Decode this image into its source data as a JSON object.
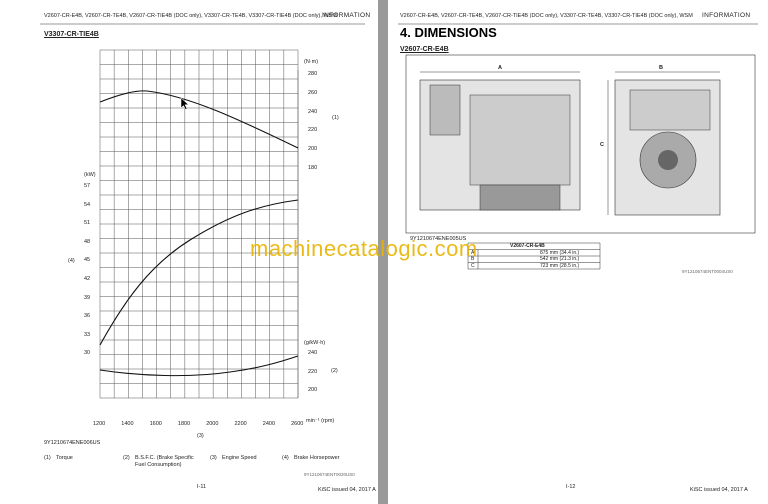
{
  "left_page": {
    "header": "V2607-CR-E4B, V2607-CR-TE4B, V2607-CR-TIE4B (DOC only), V3307-CR-TE4B, V3307-CR-TIE4B (DOC only), WSM",
    "section_label": "INFORMATION",
    "subtitle": "V3307-CR-TIE4B",
    "figure": {
      "torque_unit": "(N·m)",
      "torque_ticks": [
        280,
        260,
        240,
        220,
        200,
        180
      ],
      "torque_callout": "(1)",
      "power_unit": "(kW)",
      "power_ticks": [
        57,
        54,
        51,
        48,
        45,
        42,
        39,
        36,
        33,
        30
      ],
      "power_callout": "(4)",
      "bsfc_unit": "(g/kW·h)",
      "bsfc_ticks": [
        240,
        220,
        200
      ],
      "bsfc_callout": "(2)",
      "speed_ticks": [
        1200,
        1400,
        1600,
        1800,
        2000,
        2200,
        2400,
        2600
      ],
      "speed_unit": "min⁻¹ (rpm)",
      "speed_callout": "(3)",
      "figure_code": "9Y1210674ENE006US"
    },
    "legend": [
      {
        "number": "(1)",
        "label": "Torque"
      },
      {
        "number": "(2)",
        "label": "B.S.F.C. (Brake Specific Fuel Consumption)"
      },
      {
        "number": "(3)",
        "label": "Engine Speed"
      },
      {
        "number": "(4)",
        "label": "Brake Horsepower"
      }
    ],
    "text_code": "9Y1210674ENT0020US0",
    "page_number": "I-11",
    "footer": "KiSC issued 04, 2017 A"
  },
  "right_page": {
    "header": "V2607-CR-E4B, V2607-CR-TE4B, V2607-CR-TIE4B (DOC only), V3307-CR-TE4B, V3307-CR-TIE4B (DOC only), WSM",
    "section_label": "INFORMATION",
    "title": "4.  DIMENSIONS",
    "subtitle": "V2607-CR-E4B",
    "figure": {
      "labels": [
        "A",
        "B",
        "C"
      ],
      "figure_code": "9Y1210674ENE005US"
    },
    "table": {
      "header": "V2607-CR-E4B",
      "rows": [
        [
          "A",
          "875 mm (34.4 in.)"
        ],
        [
          "B",
          "542 mm (21.3 in.)"
        ],
        [
          "C",
          "723 mm (28.5 in.)"
        ]
      ]
    },
    "text_code": "9Y1210674ENT0004US0",
    "page_number": "I-12",
    "footer": "KiSC issued 04, 2017 A"
  },
  "watermark": "machinecatalogic.com"
}
